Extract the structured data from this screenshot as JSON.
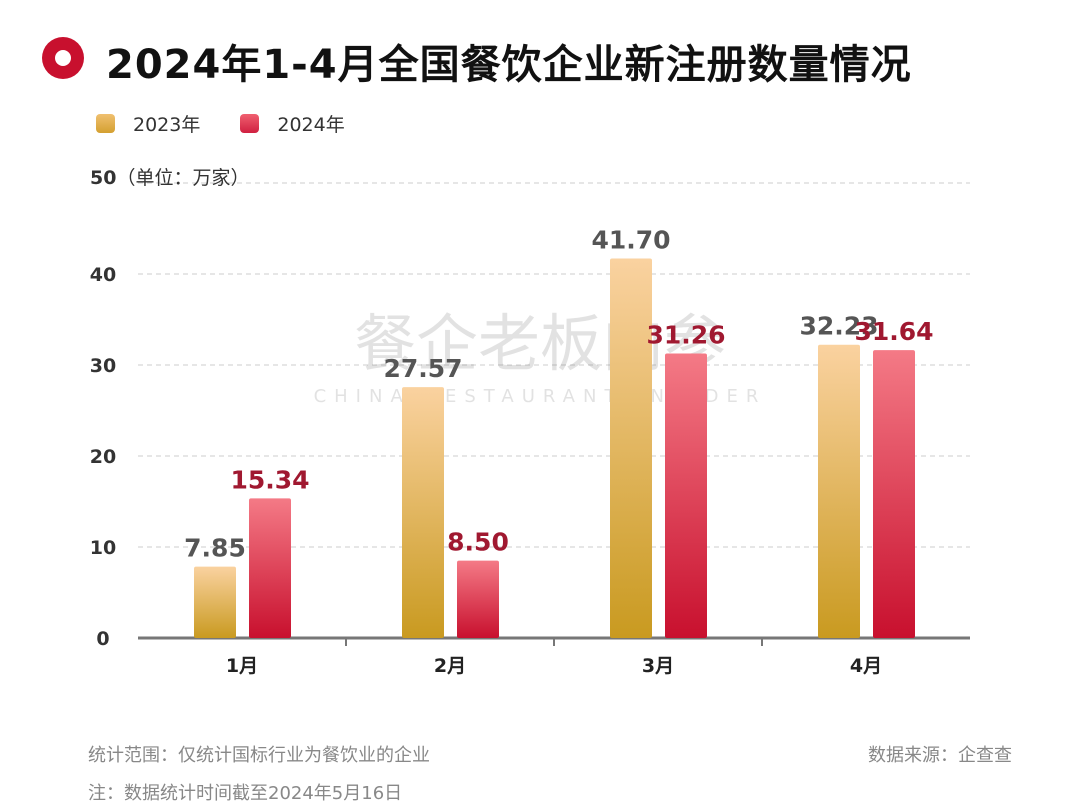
{
  "header": {
    "title": "2024年1-4月全国餐饮企业新注册数量情况",
    "icon": "red-ring-icon"
  },
  "watermark": {
    "cn": "餐企老板内参",
    "en": "CHINA RESTAURANT INSIDER"
  },
  "chart_data": {
    "type": "bar",
    "title": "2024年1-4月全国餐饮企业新注册数量情况",
    "unit_label": "（单位：万家）",
    "categories": [
      "1月",
      "2月",
      "3月",
      "4月"
    ],
    "series": [
      {
        "name": "2023年",
        "values": [
          7.85,
          27.57,
          41.7,
          32.23
        ],
        "color": "#d4a030",
        "label_color": "#555555"
      },
      {
        "name": "2024年",
        "values": [
          15.34,
          8.5,
          31.26,
          31.64
        ],
        "color": "#d02040",
        "label_color": "#a01830"
      }
    ],
    "value_labels": [
      [
        "7.85",
        "27.57",
        "41.70",
        "32.23"
      ],
      [
        "15.34",
        "8.50",
        "31.26",
        "31.64"
      ]
    ],
    "ylim": [
      0,
      50
    ],
    "yticks": [
      "0",
      "10",
      "20",
      "30",
      "40",
      "50"
    ],
    "grid": true,
    "legend_position": "top-left"
  },
  "footer": {
    "scope": "统计范围：仅统计国标行业为餐饮业的企业",
    "source": "数据来源：企查查",
    "note": "注：数据统计时间截至2024年5月16日"
  }
}
